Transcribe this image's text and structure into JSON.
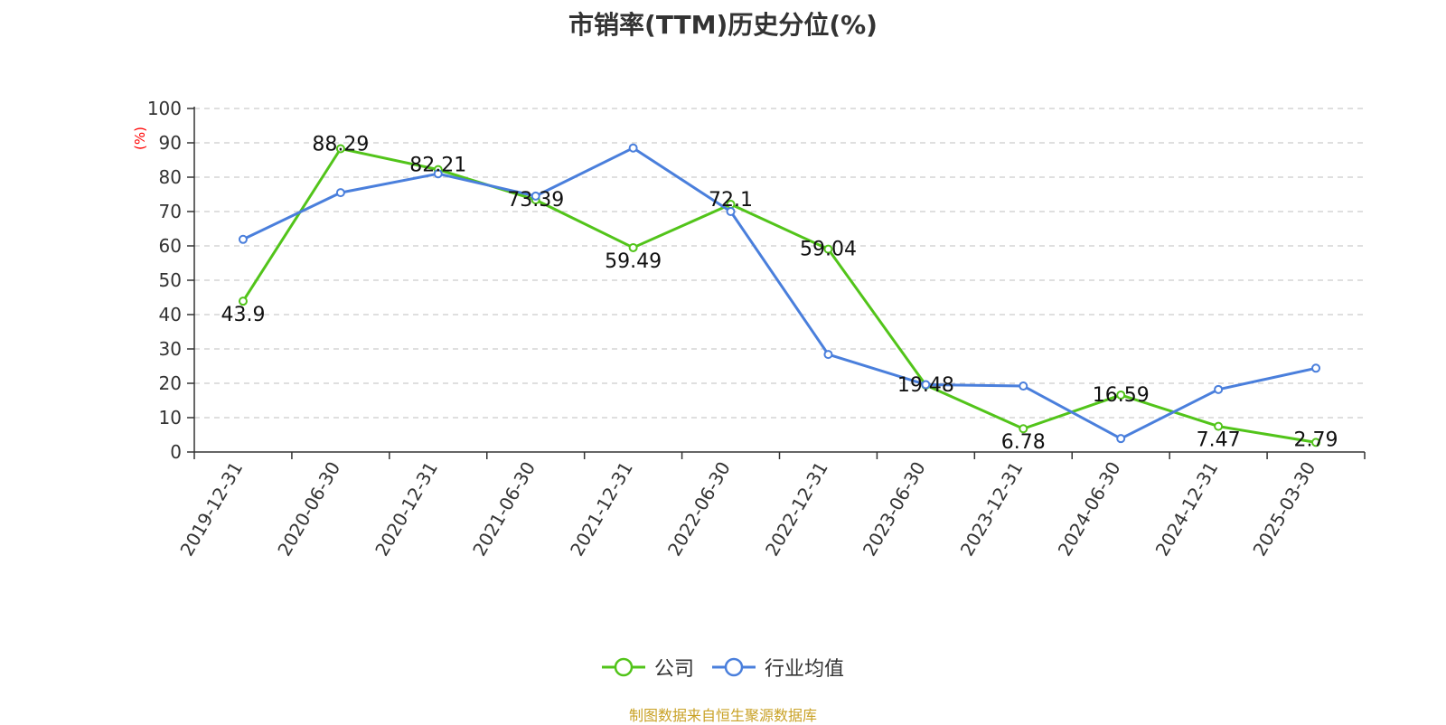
{
  "chart_data": {
    "type": "line",
    "title": "市销率(TTM)历史分位(%)",
    "ylabel": "(%)",
    "ylim": [
      0,
      100
    ],
    "yticks": [
      0,
      10,
      20,
      30,
      40,
      50,
      60,
      70,
      80,
      90,
      100
    ],
    "grid": true,
    "legend_position": "bottom",
    "x": [
      "2019-12-31",
      "2020-06-30",
      "2020-12-31",
      "2021-06-30",
      "2021-12-31",
      "2022-06-30",
      "2022-12-31",
      "2023-06-30",
      "2023-12-31",
      "2024-06-30",
      "2024-12-31",
      "2025-03-30"
    ],
    "series": [
      {
        "name": "公司",
        "color": "#52c41a",
        "values": [
          43.9,
          88.29,
          82.21,
          73.39,
          59.49,
          72.1,
          59.04,
          19.48,
          6.78,
          16.59,
          7.47,
          2.79
        ],
        "labels": [
          "43.9",
          "88.29",
          "82.21",
          "73.39",
          "59.49",
          "72.1",
          "59.04",
          "19.48",
          "6.78",
          "16.59",
          "7.47",
          "2.79"
        ]
      },
      {
        "name": "行业均值",
        "color": "#4a7fdc",
        "values": [
          61.9,
          75.5,
          81.0,
          74.5,
          88.5,
          70.0,
          28.4,
          19.6,
          19.2,
          3.9,
          18.2,
          24.4
        ]
      }
    ],
    "source": "制图数据来自恒生聚源数据库"
  }
}
